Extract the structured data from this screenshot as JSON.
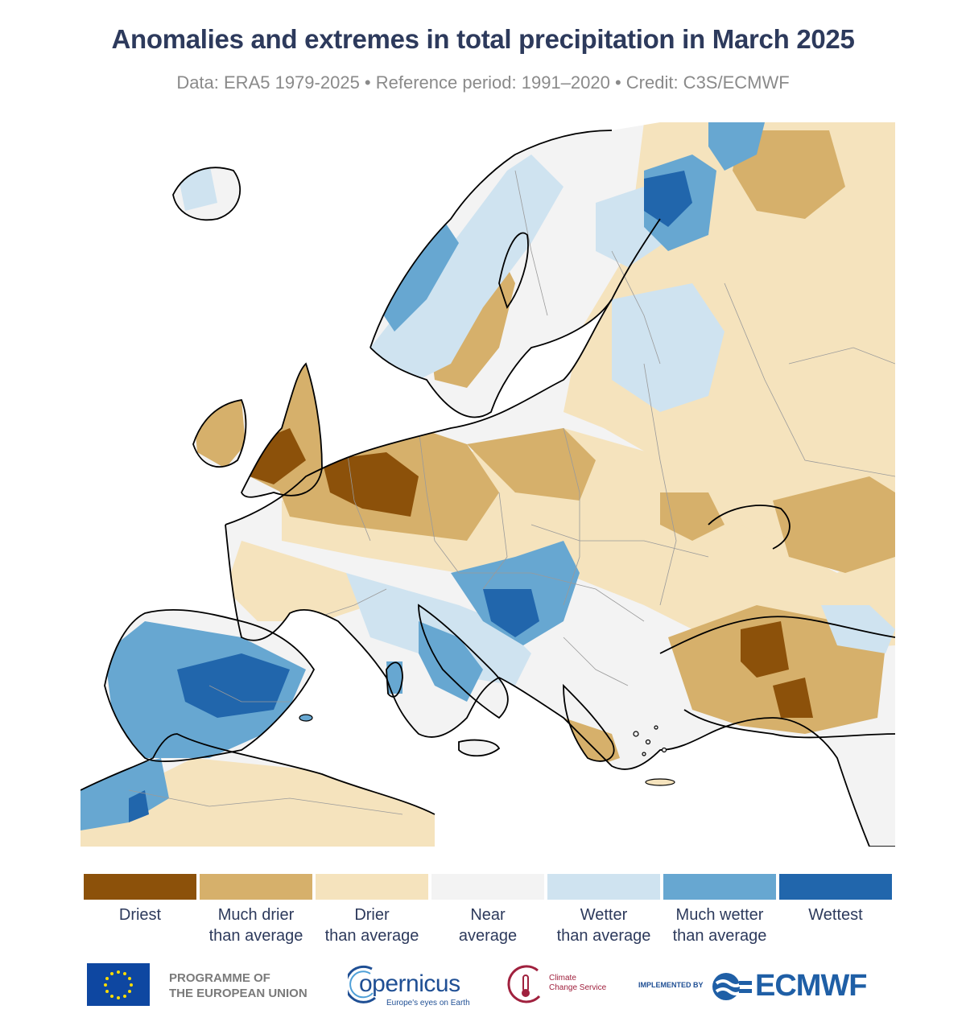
{
  "header": {
    "title": "Anomalies and extremes in total precipitation in March 2025",
    "subtitle": "Data: ERA5 1979-2025 • Reference period: 1991–2020 • Credit: C3S/ECMWF"
  },
  "legend": {
    "items": [
      {
        "label": "Driest",
        "color": "#8c510a"
      },
      {
        "label": "Much drier\nthan average",
        "color": "#d6b06b"
      },
      {
        "label": "Drier\nthan average",
        "color": "#f5e3bd"
      },
      {
        "label": "Near\naverage",
        "color": "#f3f3f3"
      },
      {
        "label": "Wetter\nthan average",
        "color": "#cfe3f0"
      },
      {
        "label": "Much wetter\nthan average",
        "color": "#67a7d1"
      },
      {
        "label": "Wettest",
        "color": "#2166ac"
      }
    ]
  },
  "map": {
    "region": "Europe",
    "colors": {
      "driest": "#8c510a",
      "much_drier": "#d6b06b",
      "drier": "#f5e3bd",
      "near": "#f3f3f3",
      "wetter": "#cfe3f0",
      "much_wetter": "#67a7d1",
      "wettest": "#2166ac",
      "sea": "#ffffff",
      "coastline": "#000000",
      "border": "#9a9a9a"
    }
  },
  "footer": {
    "eu_line1": "PROGRAMME OF",
    "eu_line2": "THE EUROPEAN UNION",
    "eu_flag_icon": "eu-flag-icon",
    "copernicus_name": "opernicus",
    "copernicus_tagline": "Europe's eyes on Earth",
    "c3s_line1": "Climate",
    "c3s_line2": "Change Service",
    "implemented_by": "IMPLEMENTED BY",
    "ecmwf_name": "ECMWF"
  }
}
